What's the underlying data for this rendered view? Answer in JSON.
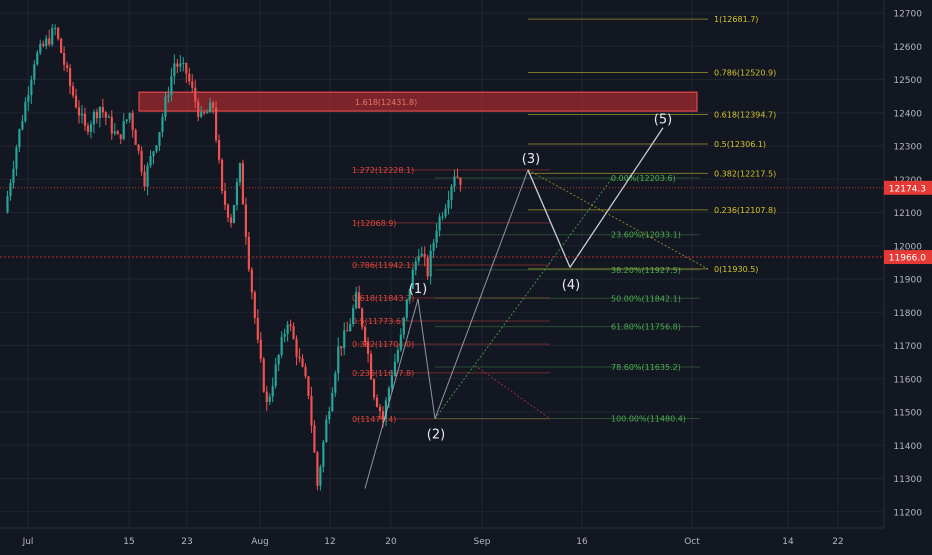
{
  "colors": {
    "background": "#131722",
    "grid": "#1f2431",
    "axis_text": "#b2b5be",
    "candle_up": "#26a69a",
    "candle_down": "#ef5350",
    "fib_red": "#e0453a",
    "fib_green": "#4caf50",
    "fib_yellow": "#d4c42b",
    "zone_fill": "#d32f2f",
    "wave_line": "#c8ccd8",
    "price_tag_red": "#e53935"
  },
  "chart_data": {
    "type": "candlestick",
    "title": "",
    "xlabel": "",
    "ylabel": "",
    "ylim": [
      11180,
      12750
    ],
    "y_ticks": [
      11200,
      11300,
      11400,
      11500,
      11600,
      11700,
      11800,
      11900,
      12000,
      12100,
      12200,
      12300,
      12400,
      12500,
      12600,
      12700
    ],
    "x_ticks": [
      "Jul",
      "15",
      "23",
      "Aug",
      "12",
      "20",
      "Sep",
      "16",
      "Oct",
      "14",
      "22"
    ],
    "grid": true,
    "price_tags": [
      {
        "label": "12174.3",
        "value": 12174.3
      },
      {
        "label": "11966.0",
        "value": 11966.0
      }
    ],
    "price_path": [
      [
        0,
        12100
      ],
      [
        4,
        12300
      ],
      [
        10,
        12560
      ],
      [
        17,
        12650
      ],
      [
        22,
        12480
      ],
      [
        27,
        12350
      ],
      [
        32,
        12420
      ],
      [
        38,
        12320
      ],
      [
        42,
        12400
      ],
      [
        47,
        12200
      ],
      [
        52,
        12350
      ],
      [
        57,
        12550
      ],
      [
        61,
        12520
      ],
      [
        66,
        12380
      ],
      [
        70,
        12420
      ],
      [
        73,
        12150
      ],
      [
        76,
        12080
      ],
      [
        79,
        12230
      ],
      [
        82,
        11950
      ],
      [
        85,
        11700
      ],
      [
        88,
        11520
      ],
      [
        91,
        11630
      ],
      [
        95,
        11780
      ],
      [
        99,
        11650
      ],
      [
        102,
        11560
      ],
      [
        105,
        11280
      ],
      [
        108,
        11470
      ],
      [
        112,
        11690
      ],
      [
        115,
        11740
      ],
      [
        118,
        11840
      ],
      [
        121,
        11730
      ],
      [
        124,
        11560
      ],
      [
        127,
        11480
      ],
      [
        130,
        11620
      ],
      [
        133,
        11720
      ],
      [
        136,
        11880
      ],
      [
        139,
        11990
      ],
      [
        142,
        11920
      ],
      [
        145,
        12060
      ],
      [
        148,
        12130
      ],
      [
        151,
        12220
      ],
      [
        153,
        12200
      ]
    ],
    "resistance_zone": {
      "label": "1.618(12431.8)",
      "y_top": 12462,
      "y_bottom": 12405
    },
    "fib_extension_red": [
      {
        "label": "1.618(12431.8)",
        "value": 12431.8
      },
      {
        "label": "1.272(12228.1)",
        "value": 12228.1
      },
      {
        "label": "1(12068.9)",
        "value": 12068.9
      },
      {
        "label": "0.786(11942.1)",
        "value": 11942.1
      },
      {
        "label": "0.618(11843.2)",
        "value": 11843.2
      },
      {
        "label": "0.5(11773.6)",
        "value": 11773.6
      },
      {
        "label": "0.382(11704.0)",
        "value": 11704.0
      },
      {
        "label": "0.236(11617.8)",
        "value": 11617.8
      },
      {
        "label": "0(11479.4)",
        "value": 11479.4
      }
    ],
    "fib_retracement_green": [
      {
        "label": "0.00%(12203.6)",
        "value": 12203.6
      },
      {
        "label": "23.60%(12033.1)",
        "value": 12033.1
      },
      {
        "label": "38.20%(11927.5)",
        "value": 11927.5
      },
      {
        "label": "50.00%(11842.1)",
        "value": 11842.1
      },
      {
        "label": "61.80%(11756.8)",
        "value": 11756.8
      },
      {
        "label": "78.60%(11635.2)",
        "value": 11635.2
      },
      {
        "label": "100.00%(11480.4)",
        "value": 11480.4
      }
    ],
    "fib_extension_yellow": [
      {
        "label": "1(12681.7)",
        "value": 12681.7
      },
      {
        "label": "0.786(12520.9)",
        "value": 12520.9
      },
      {
        "label": "0.618(12394.7)",
        "value": 12394.7
      },
      {
        "label": "0.5(12306.1)",
        "value": 12306.1
      },
      {
        "label": "0.382(12217.5)",
        "value": 12217.5
      },
      {
        "label": "0.236(12107.8)",
        "value": 12107.8
      },
      {
        "label": "0(11930.5)",
        "value": 11930.5
      }
    ],
    "wave_labels": [
      {
        "label": "(1)",
        "value": 11840
      },
      {
        "label": "(2)",
        "value": 11480
      },
      {
        "label": "(3)",
        "value": 12225
      },
      {
        "label": "(4)",
        "value": 11930
      },
      {
        "label": "(5)",
        "value": 12350
      }
    ]
  }
}
